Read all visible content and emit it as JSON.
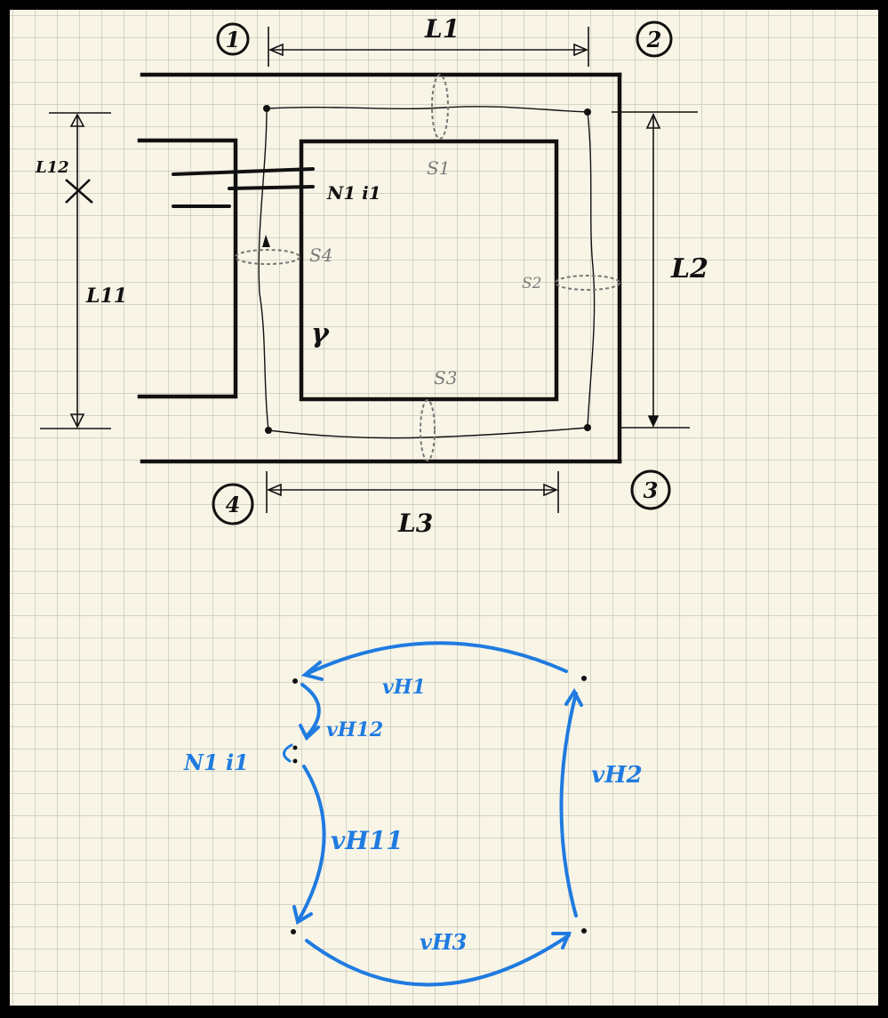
{
  "nodes": {
    "n1": "1",
    "n2": "2",
    "n3": "3",
    "n4": "4"
  },
  "dimensions": {
    "l1": "L1",
    "l2": "L2",
    "l3": "L3",
    "l11": "L11",
    "l12": "L12"
  },
  "winding": {
    "label": "N1 i1"
  },
  "sections": {
    "s1": "S1",
    "s2": "S2",
    "s3": "S3",
    "s4": "S4"
  },
  "path_label": "γ",
  "circuit": {
    "source_label": "N1 i1",
    "vh1": "vH1",
    "vh12": "vH12",
    "vh11": "vH11",
    "vh2": "vH2",
    "vh3": "vH3"
  },
  "colors": {
    "ink": "#111111",
    "gray": "#7a7a7a",
    "blue": "#1f7be0",
    "paper": "#f8f5e6"
  }
}
